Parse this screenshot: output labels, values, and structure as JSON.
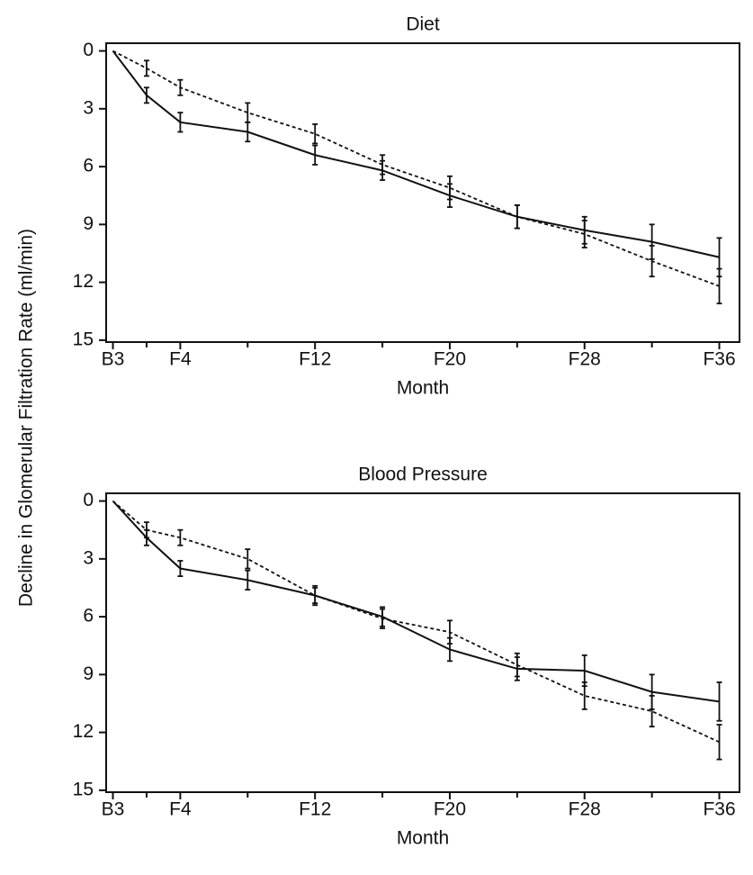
{
  "chart_data": [
    {
      "type": "line",
      "title": "Diet",
      "xlabel": "Month",
      "ylabel": "Decline in Glomerular Filtration Rate (ml/min)",
      "x": [
        0,
        2,
        4,
        8,
        12,
        16,
        20,
        24,
        28,
        32,
        36
      ],
      "xlim": [
        -0.4,
        37.2
      ],
      "xticks": [
        {
          "value": 0,
          "label": "B3"
        },
        {
          "value": 4,
          "label": "F4"
        },
        {
          "value": 12,
          "label": "F12"
        },
        {
          "value": 20,
          "label": "F20"
        },
        {
          "value": 28,
          "label": "F28"
        },
        {
          "value": 36,
          "label": "F36"
        }
      ],
      "xminor": [
        2,
        8,
        16,
        24,
        32
      ],
      "ylim": [
        -0.4,
        15.1
      ],
      "inverted": true,
      "yticks": [
        0,
        3,
        6,
        9,
        12,
        15
      ],
      "series": [
        {
          "color": "#111111",
          "style": "solid",
          "values": [
            0,
            2.3,
            3.7,
            4.2,
            5.4,
            6.2,
            7.5,
            8.6,
            9.3,
            9.9,
            10.7
          ],
          "errors": [
            null,
            0.4,
            0.5,
            0.5,
            0.5,
            0.5,
            0.6,
            0.6,
            0.7,
            0.9,
            1.0
          ]
        },
        {
          "color": "#111111",
          "style": "dashed",
          "values": [
            0,
            0.9,
            1.9,
            3.2,
            4.3,
            5.9,
            7.1,
            8.6,
            9.5,
            10.9,
            12.2
          ],
          "errors": [
            null,
            0.4,
            0.4,
            0.5,
            0.5,
            0.5,
            0.6,
            0.6,
            0.7,
            0.8,
            0.9
          ]
        }
      ]
    },
    {
      "type": "line",
      "title": "Blood Pressure",
      "xlabel": "Month",
      "x": [
        0,
        2,
        4,
        8,
        12,
        16,
        20,
        24,
        28,
        32,
        36
      ],
      "xlim": [
        -0.4,
        37.2
      ],
      "xticks": [
        {
          "value": 0,
          "label": "B3"
        },
        {
          "value": 4,
          "label": "F4"
        },
        {
          "value": 12,
          "label": "F12"
        },
        {
          "value": 20,
          "label": "F20"
        },
        {
          "value": 28,
          "label": "F28"
        },
        {
          "value": 36,
          "label": "F36"
        }
      ],
      "xminor": [
        2,
        8,
        16,
        24,
        32
      ],
      "ylim": [
        -0.4,
        15.1
      ],
      "inverted": true,
      "yticks": [
        0,
        3,
        6,
        9,
        12,
        15
      ],
      "series": [
        {
          "color": "#111111",
          "style": "solid",
          "values": [
            0,
            1.9,
            3.5,
            4.1,
            4.9,
            6.0,
            7.7,
            8.7,
            8.8,
            9.9,
            10.4
          ],
          "errors": [
            null,
            0.4,
            0.4,
            0.5,
            0.4,
            0.5,
            0.6,
            0.6,
            0.8,
            0.9,
            1.0
          ]
        },
        {
          "color": "#111111",
          "style": "dashed",
          "values": [
            0,
            1.5,
            1.9,
            3.0,
            4.9,
            6.1,
            6.8,
            8.5,
            10.1,
            10.9,
            12.5
          ],
          "errors": [
            null,
            0.4,
            0.4,
            0.5,
            0.5,
            0.5,
            0.6,
            0.6,
            0.7,
            0.8,
            0.9
          ]
        }
      ]
    }
  ]
}
